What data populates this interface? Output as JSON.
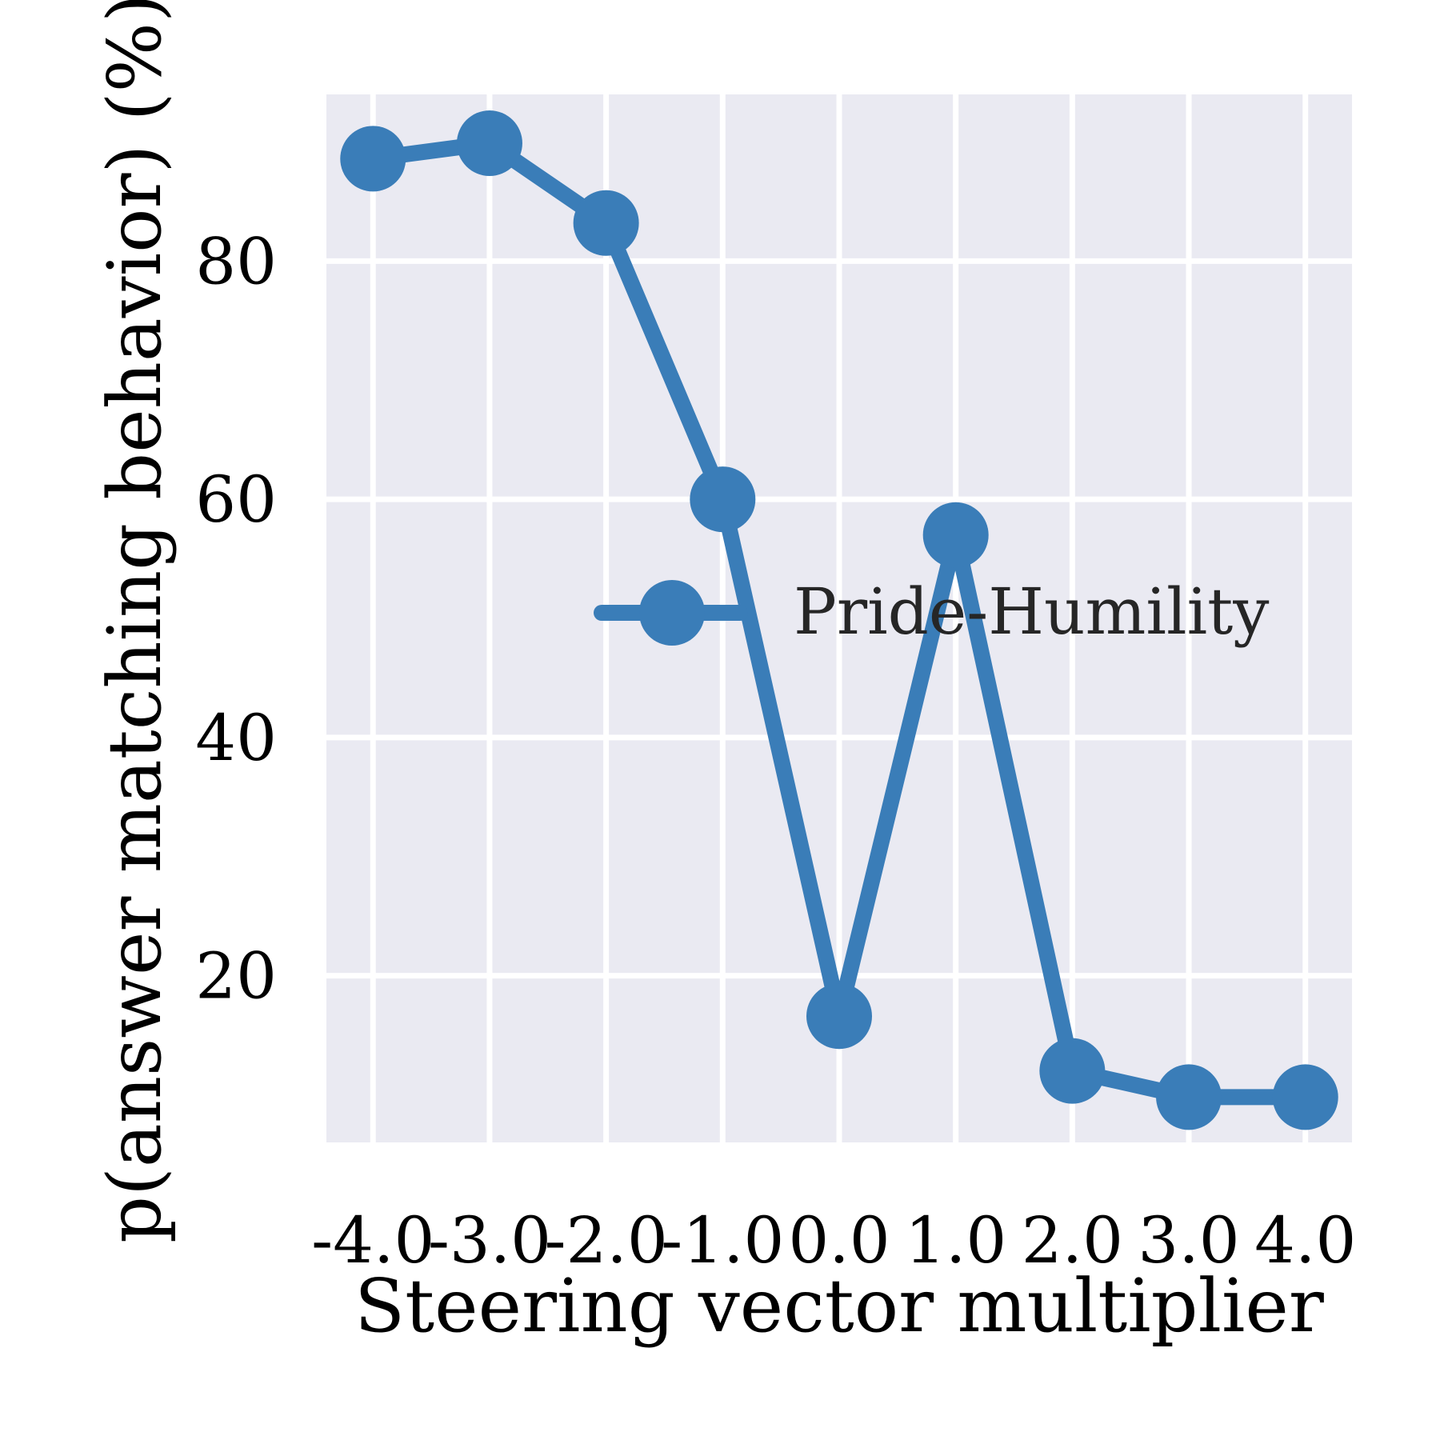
{
  "chart_data": {
    "type": "line",
    "xlabel": "Steering vector multiplier",
    "ylabel": "p(answer matching behavior) (%)",
    "x": [
      -4.0,
      -3.0,
      -2.0,
      -1.0,
      0.0,
      1.0,
      2.0,
      3.0,
      4.0
    ],
    "x_tick_labels": [
      "-4.0",
      "-3.0",
      "-2.0",
      "-1.0",
      "0.0",
      "1.0",
      "2.0",
      "3.0",
      "4.0"
    ],
    "y_ticks": [
      20,
      40,
      60,
      80
    ],
    "y_tick_labels": [
      "20",
      "40",
      "60",
      "80"
    ],
    "xlim": [
      -4.4,
      4.4
    ],
    "ylim": [
      6,
      94
    ],
    "grid": true,
    "legend_position": "center-right",
    "series": [
      {
        "name": "Pride-Humility",
        "color": "#3a7db8",
        "values": [
          88.6,
          89.9,
          83.2,
          60.0,
          16.6,
          57.0,
          12.0,
          9.8,
          9.8
        ]
      }
    ]
  }
}
